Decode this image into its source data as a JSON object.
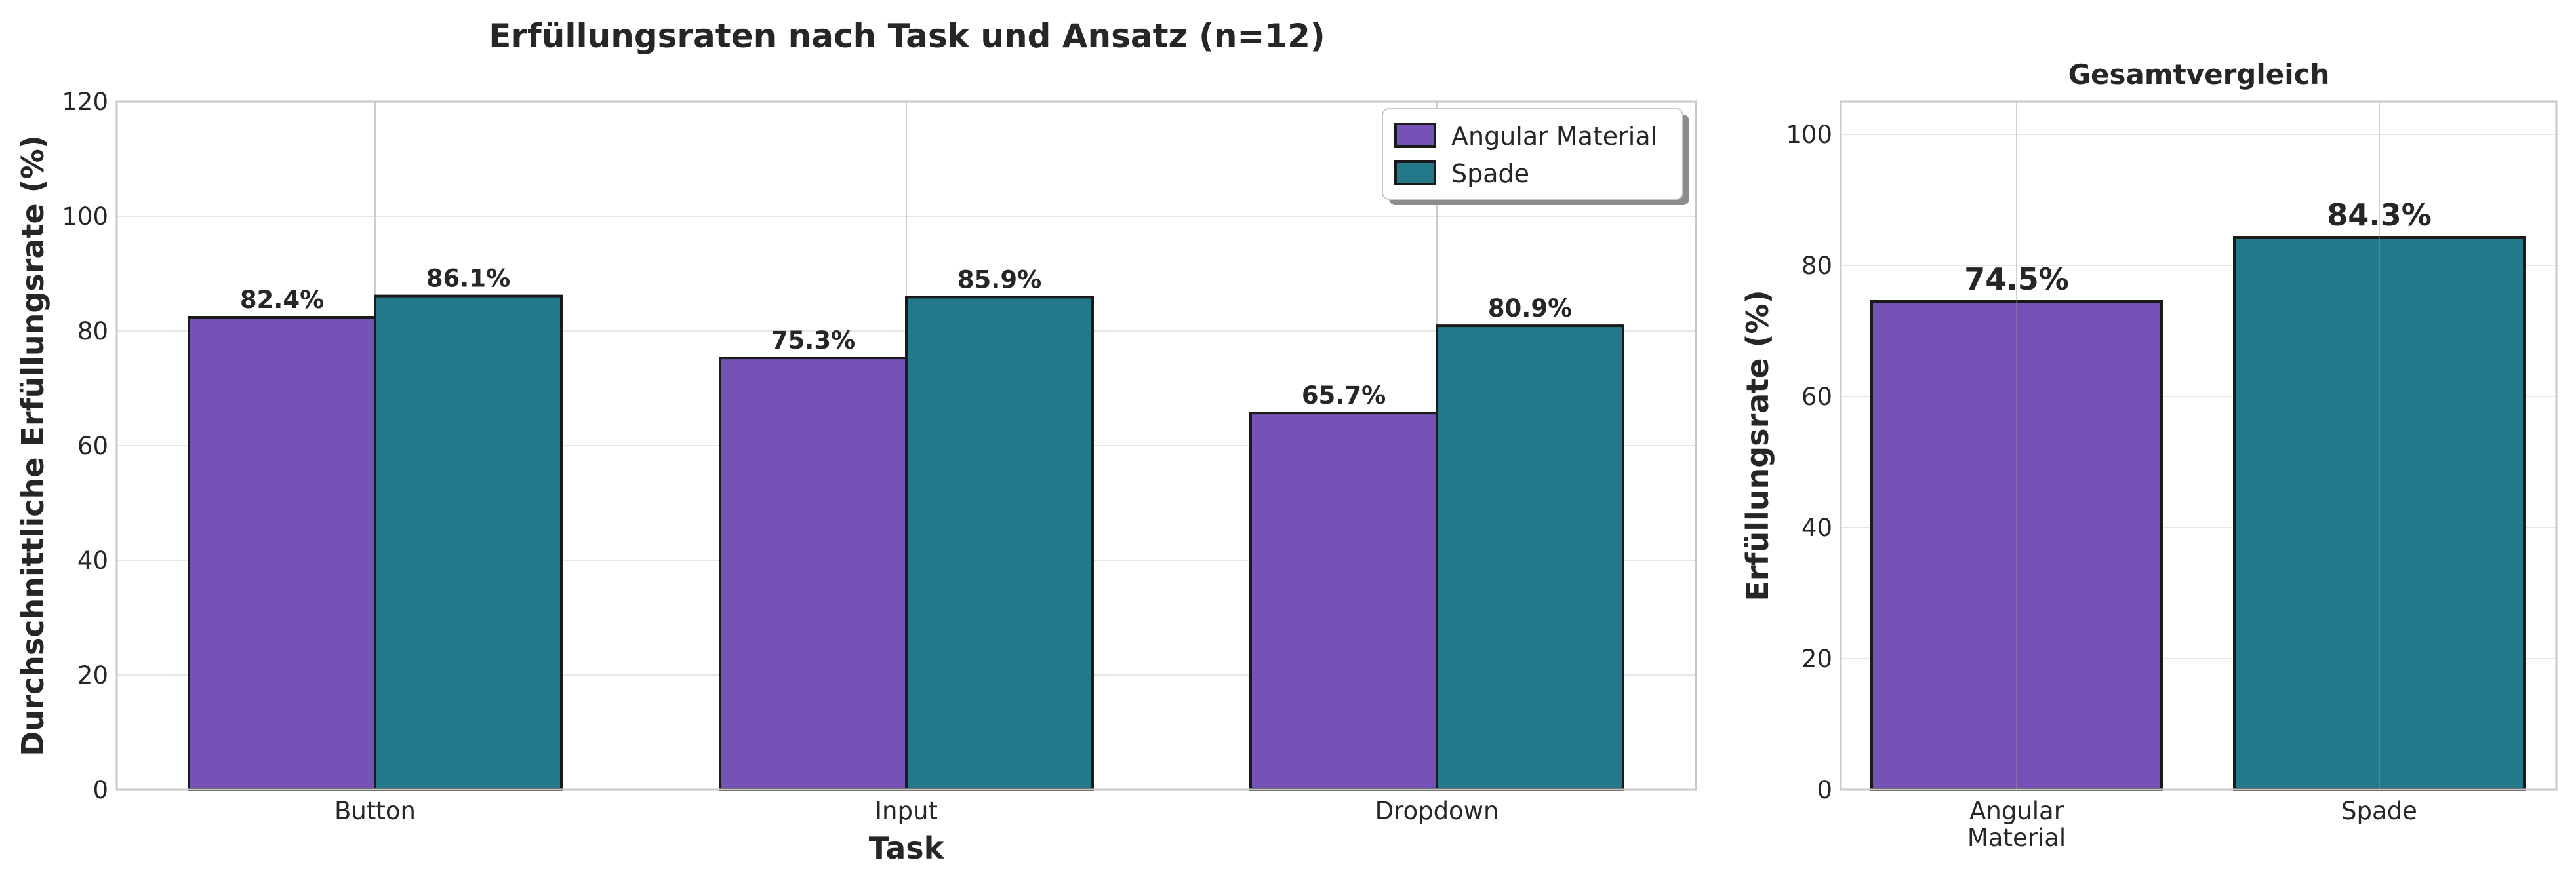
{
  "chart_data": [
    {
      "type": "bar",
      "title": "Erfüllungsraten nach Task und Ansatz (n=12)",
      "xlabel": "Task",
      "ylabel": "Durchschnittliche Erfüllungsrate (%)",
      "categories": [
        "Button",
        "Input",
        "Dropdown"
      ],
      "series": [
        {
          "name": "Angular Material",
          "values": [
            82.4,
            75.3,
            65.7
          ],
          "labels": [
            "82.4%",
            "75.3%",
            "65.7%"
          ],
          "color": "#7552b5"
        },
        {
          "name": "Spade",
          "values": [
            86.1,
            85.9,
            80.9
          ],
          "labels": [
            "86.1%",
            "85.9%",
            "80.9%"
          ],
          "color": "#23788a"
        }
      ],
      "ylim": [
        0,
        120
      ],
      "yticks": [
        "0",
        "20",
        "40",
        "60",
        "80",
        "100",
        "120"
      ],
      "grid": true,
      "legend": "top-right"
    },
    {
      "type": "bar",
      "title": "Gesamtvergleich",
      "xlabel": "",
      "ylabel": "Erfüllungsrate (%)",
      "categories": [
        [
          "Angular",
          "Material"
        ],
        [
          "Spade"
        ]
      ],
      "values": [
        74.5,
        84.3
      ],
      "labels": [
        "74.5%",
        "84.3%"
      ],
      "colors": [
        "#7552b5",
        "#23788a"
      ],
      "ylim": [
        0,
        105
      ],
      "yticks": [
        "0",
        "20",
        "40",
        "60",
        "80",
        "100"
      ],
      "grid": true
    }
  ]
}
